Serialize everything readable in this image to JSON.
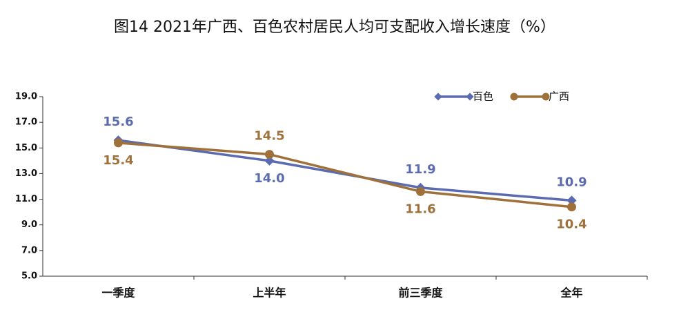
{
  "chart_data": {
    "type": "line",
    "title": "图14 2021年广西、百色农村居民人均可支配收入增长速度（%）",
    "categories": [
      "一季度",
      "上半年",
      "前三季度",
      "全年"
    ],
    "series": [
      {
        "name": "百色",
        "color": "#5b6bb0",
        "values": [
          15.6,
          14.0,
          11.9,
          10.9
        ],
        "value_labels": [
          "15.6",
          "14.0",
          "11.9",
          "10.9"
        ]
      },
      {
        "name": "广西",
        "color": "#a0703a",
        "values": [
          15.4,
          14.5,
          11.6,
          10.4
        ],
        "value_labels": [
          "15.4",
          "14.5",
          "11.6",
          "10.4"
        ]
      }
    ],
    "ylim": [
      5,
      19
    ],
    "yticks": [
      {
        "value": 5,
        "label": "5.0"
      },
      {
        "value": 7,
        "label": "7.0"
      },
      {
        "value": 9,
        "label": "9.0"
      },
      {
        "value": 11,
        "label": "11.0"
      },
      {
        "value": 13,
        "label": "13.0"
      },
      {
        "value": 15,
        "label": "15.0"
      },
      {
        "value": 17,
        "label": "17.0"
      },
      {
        "value": 19,
        "label": "19.0"
      }
    ],
    "grid": false,
    "legend": "top-right"
  }
}
